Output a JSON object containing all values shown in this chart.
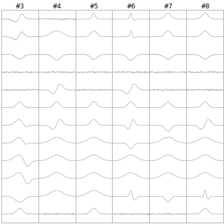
{
  "columns": [
    "#3",
    "#4",
    "#5",
    "#6",
    "#7",
    "#8"
  ],
  "n_rows": 12,
  "n_cols": 6,
  "background_color": "#ffffff",
  "line_color": "#999999",
  "line_width": 0.4,
  "border_color": "#aaaaaa",
  "title_fontsize": 6.5,
  "fig_width": 3.2,
  "fig_height": 3.2,
  "dpi": 100,
  "lead_styles": [
    [
      "small_neg_pos",
      "flat",
      "spike_pos",
      "tall_spike",
      "small_pos",
      "small_pos"
    ],
    [
      "small_neg_pos",
      "wide_hump",
      "small_pos",
      "tall_spike",
      "small_pos",
      "small_pos"
    ],
    [
      "neg_dip",
      "neg_dip",
      "neg_dip",
      "neg_dip",
      "neg_dip",
      "neg_dip"
    ],
    [
      "flat",
      "flat",
      "flat",
      "flat",
      "flat",
      "flat"
    ],
    [
      "flat",
      "biphasic",
      "flat",
      "biphasic",
      "flat",
      "flat"
    ],
    [
      "small_pos",
      "small_pos",
      "small_pos",
      "small_pos",
      "small_pos",
      "small_pos"
    ],
    [
      "hump_neg",
      "biphasic",
      "small_pos",
      "biphasic_t",
      "small_neg",
      "biphasic"
    ],
    [
      "hump_neg",
      "wide_hump",
      "wide_hump",
      "neg_sharp",
      "wide_hump",
      "wide_hump"
    ],
    [
      "big_hump_neg",
      "wide_hump",
      "wide_hump",
      "wide_hump",
      "wide_hump",
      "wide_hump"
    ],
    [
      "big_hump_neg",
      "wide_hump",
      "wide_hump",
      "wide_hump",
      "wide_hump",
      "wide_hump"
    ],
    [
      "deep_neg",
      "wide_hump",
      "wide_hump",
      "tall_narrow",
      "neg_sharp",
      "qrs_spike"
    ],
    [
      "small_pos",
      "flat",
      "small_pos",
      "flat",
      "flat",
      "small_pos"
    ]
  ],
  "amplitudes": [
    [
      0.4,
      0.2,
      0.8,
      1.5,
      0.5,
      0.6
    ],
    [
      0.4,
      0.9,
      0.6,
      1.5,
      0.5,
      0.5
    ],
    [
      0.3,
      0.5,
      0.3,
      0.5,
      0.3,
      0.3
    ],
    [
      0.1,
      0.1,
      0.1,
      0.3,
      0.1,
      0.1
    ],
    [
      0.2,
      0.5,
      0.2,
      0.6,
      0.2,
      0.2
    ],
    [
      0.4,
      0.5,
      0.4,
      0.5,
      0.4,
      0.4
    ],
    [
      0.6,
      0.7,
      0.5,
      0.8,
      0.5,
      0.6
    ],
    [
      0.7,
      0.8,
      0.7,
      0.7,
      0.7,
      0.7
    ],
    [
      0.9,
      0.9,
      0.8,
      0.8,
      0.8,
      0.8
    ],
    [
      0.9,
      1.0,
      0.8,
      0.8,
      0.8,
      0.8
    ],
    [
      1.0,
      0.9,
      0.7,
      0.8,
      0.7,
      0.9
    ],
    [
      0.4,
      0.2,
      0.3,
      0.2,
      0.2,
      0.5
    ]
  ]
}
